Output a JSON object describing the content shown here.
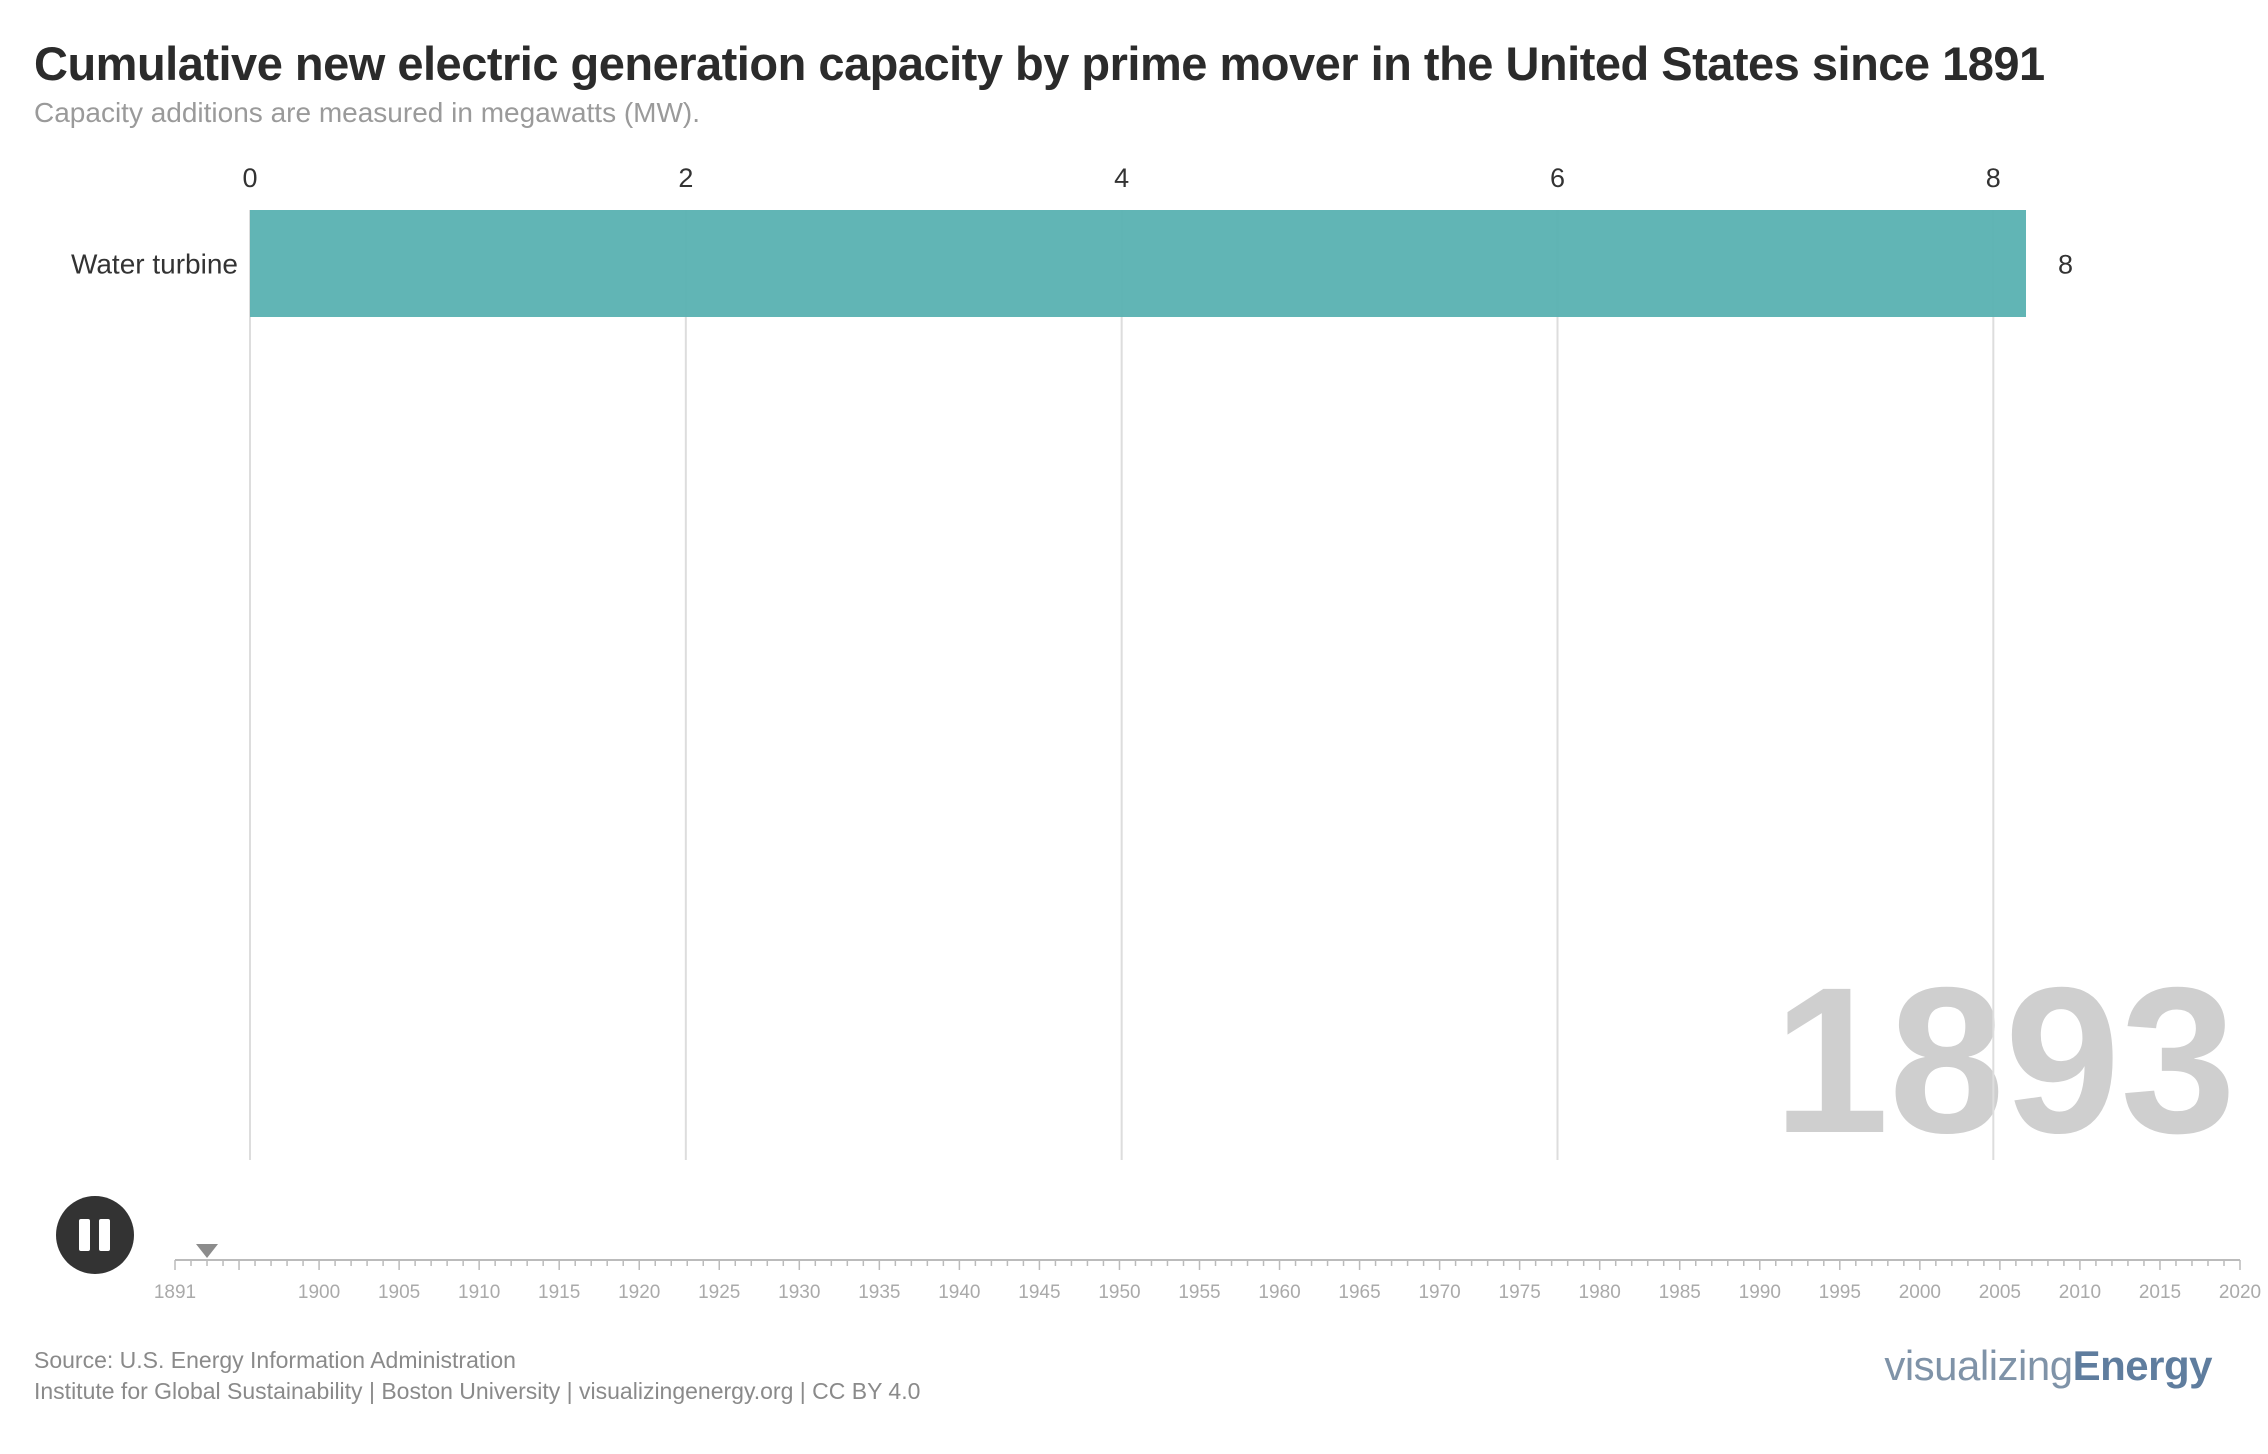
{
  "title": "Cumulative new electric generation capacity by prime mover in the United States since 1891",
  "subtitle": "Capacity additions are measured in megawatts (MW).",
  "year_label": "1893",
  "chart_data": {
    "type": "bar",
    "orientation": "horizontal",
    "categories": [
      "Water turbine"
    ],
    "values": [
      8.15
    ],
    "value_labels": [
      "8"
    ],
    "xlim": [
      0,
      8.15
    ],
    "x_ticks": [
      0,
      2,
      4,
      6,
      8
    ],
    "grid": true,
    "color": "#5cb3b3",
    "current_year": 1893
  },
  "timeline": {
    "start": 1891,
    "end": 2020,
    "labels": [
      "1891",
      "1900",
      "1905",
      "1910",
      "1915",
      "1920",
      "1925",
      "1930",
      "1935",
      "1940",
      "1945",
      "1950",
      "1955",
      "1960",
      "1965",
      "1970",
      "1975",
      "1980",
      "1985",
      "1990",
      "1995",
      "2000",
      "2005",
      "2010",
      "2015",
      "2020"
    ],
    "current": 1893
  },
  "controls": {
    "pause_icon": "pause-icon"
  },
  "footer": {
    "source": "Source: U.S. Energy Information Administration",
    "credit": "Institute for Global Sustainability | Boston University | visualizingenergy.org | CC BY 4.0"
  },
  "logo": {
    "part1": "visualizing",
    "part2": "Energy"
  }
}
